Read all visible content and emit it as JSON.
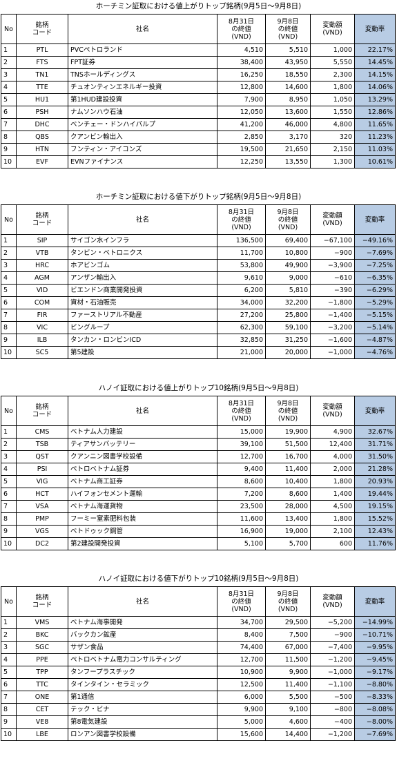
{
  "headers": {
    "no": "No",
    "code_l1": "銘柄",
    "code_l2": "コード",
    "name": "社名",
    "prev_l1": "8月31日",
    "prev_l2": "の終値",
    "prev_l3": "(VND)",
    "close_l1": "9月8日",
    "close_l2": "の終値",
    "close_l3": "(VND)",
    "diff_l1": "変動額",
    "diff_l2": "(VND)",
    "chg": "変動率"
  },
  "sections": [
    {
      "title": "ホーチミン証取における値上がりトップ銘柄(9月5日～9月8日)",
      "rows": [
        {
          "no": "1",
          "code": "PTL",
          "name": "PVCペトロランド",
          "prev": "4,510",
          "close": "5,510",
          "diff": "1,000",
          "chg": "22.17%"
        },
        {
          "no": "2",
          "code": "FTS",
          "name": "FPT証券",
          "prev": "38,400",
          "close": "43,950",
          "diff": "5,550",
          "chg": "14.45%"
        },
        {
          "no": "3",
          "code": "TN1",
          "name": "TNSホールディングス",
          "prev": "16,250",
          "close": "18,550",
          "diff": "2,300",
          "chg": "14.15%"
        },
        {
          "no": "4",
          "code": "TTE",
          "name": "チュオンティンエネルギー投資",
          "prev": "12,800",
          "close": "14,600",
          "diff": "1,800",
          "chg": "14.06%"
        },
        {
          "no": "5",
          "code": "HU1",
          "name": "第1HUD建設投資",
          "prev": "7,900",
          "close": "8,950",
          "diff": "1,050",
          "chg": "13.29%"
        },
        {
          "no": "6",
          "code": "PSH",
          "name": "ナムソンハウ石油",
          "prev": "12,050",
          "close": "13,600",
          "diff": "1,550",
          "chg": "12.86%"
        },
        {
          "no": "7",
          "code": "DHC",
          "name": "ベンチェー・ドンハイパルプ",
          "prev": "41,200",
          "close": "46,000",
          "diff": "4,800",
          "chg": "11.65%"
        },
        {
          "no": "8",
          "code": "QBS",
          "name": "クアンビン輸出入",
          "prev": "2,850",
          "close": "3,170",
          "diff": "320",
          "chg": "11.23%"
        },
        {
          "no": "9",
          "code": "HTN",
          "name": "フンティン・アイコンズ",
          "prev": "19,500",
          "close": "21,650",
          "diff": "2,150",
          "chg": "11.03%"
        },
        {
          "no": "10",
          "code": "EVF",
          "name": "EVNファイナンス",
          "prev": "12,250",
          "close": "13,550",
          "diff": "1,300",
          "chg": "10.61%"
        }
      ]
    },
    {
      "title": "ホーチミン証取における値下がりトップ銘柄(9月5日～9月8日)",
      "rows": [
        {
          "no": "1",
          "code": "SIP",
          "name": "サイゴン水インフラ",
          "prev": "136,500",
          "close": "69,400",
          "diff": "−67,100",
          "chg": "−49.16%"
        },
        {
          "no": "2",
          "code": "VTB",
          "name": "タンビン・ベトロニクス",
          "prev": "11,700",
          "close": "10,800",
          "diff": "−900",
          "chg": "−7.69%"
        },
        {
          "no": "3",
          "code": "HRC",
          "name": "ホアビンゴム",
          "prev": "53,800",
          "close": "49,900",
          "diff": "−3,900",
          "chg": "−7.25%"
        },
        {
          "no": "4",
          "code": "AGM",
          "name": "アンザン輸出入",
          "prev": "9,610",
          "close": "9,000",
          "diff": "−610",
          "chg": "−6.35%"
        },
        {
          "no": "5",
          "code": "VID",
          "name": "ビエンドン商業開発投資",
          "prev": "6,200",
          "close": "5,810",
          "diff": "−390",
          "chg": "−6.29%"
        },
        {
          "no": "6",
          "code": "COM",
          "name": "資材・石油販売",
          "prev": "34,000",
          "close": "32,200",
          "diff": "−1,800",
          "chg": "−5.29%"
        },
        {
          "no": "7",
          "code": "FIR",
          "name": "ファーストリアル不動産",
          "prev": "27,200",
          "close": "25,800",
          "diff": "−1,400",
          "chg": "−5.15%"
        },
        {
          "no": "8",
          "code": "VIC",
          "name": "ビングループ",
          "prev": "62,300",
          "close": "59,100",
          "diff": "−3,200",
          "chg": "−5.14%"
        },
        {
          "no": "9",
          "code": "ILB",
          "name": "タンカン・ロンビンICD",
          "prev": "32,850",
          "close": "31,250",
          "diff": "−1,600",
          "chg": "−4.87%"
        },
        {
          "no": "10",
          "code": "SC5",
          "name": "第5建設",
          "prev": "21,000",
          "close": "20,000",
          "diff": "−1,000",
          "chg": "−4.76%"
        }
      ]
    },
    {
      "title": "ハノイ証取における値上がりトップ10銘柄(9月5日～9月8日)",
      "rows": [
        {
          "no": "1",
          "code": "CMS",
          "name": "ベトナム人力建設",
          "prev": "15,000",
          "close": "19,900",
          "diff": "4,900",
          "chg": "32.67%"
        },
        {
          "no": "2",
          "code": "TSB",
          "name": "ティアサンバッテリー",
          "prev": "39,100",
          "close": "51,500",
          "diff": "12,400",
          "chg": "31.71%"
        },
        {
          "no": "3",
          "code": "QST",
          "name": "クアンニン図書学校設備",
          "prev": "12,700",
          "close": "16,700",
          "diff": "4,000",
          "chg": "31.50%"
        },
        {
          "no": "4",
          "code": "PSI",
          "name": "ペトロベトナム証券",
          "prev": "9,400",
          "close": "11,400",
          "diff": "2,000",
          "chg": "21.28%"
        },
        {
          "no": "5",
          "code": "VIG",
          "name": "ベトナム商工証券",
          "prev": "8,600",
          "close": "10,400",
          "diff": "1,800",
          "chg": "20.93%"
        },
        {
          "no": "6",
          "code": "HCT",
          "name": "ハイフォンセメント運輸",
          "prev": "7,200",
          "close": "8,600",
          "diff": "1,400",
          "chg": "19.44%"
        },
        {
          "no": "7",
          "code": "VSA",
          "name": "ベトナム海運貨物",
          "prev": "23,500",
          "close": "28,000",
          "diff": "4,500",
          "chg": "19.15%"
        },
        {
          "no": "8",
          "code": "PMP",
          "name": "フーミー窒素肥料包装",
          "prev": "11,600",
          "close": "13,400",
          "diff": "1,800",
          "chg": "15.52%"
        },
        {
          "no": "9",
          "code": "VGS",
          "name": "ベトドゥック鋼管",
          "prev": "16,900",
          "close": "19,000",
          "diff": "2,100",
          "chg": "12.43%"
        },
        {
          "no": "10",
          "code": "DC2",
          "name": "第2建設開発投資",
          "prev": "5,100",
          "close": "5,700",
          "diff": "600",
          "chg": "11.76%"
        }
      ]
    },
    {
      "title": "ハノイ証取における値下がりトップ10銘柄(9月5日～9月8日)",
      "rows": [
        {
          "no": "1",
          "code": "VMS",
          "name": "ベトナム海事開発",
          "prev": "34,700",
          "close": "29,500",
          "diff": "−5,200",
          "chg": "−14.99%"
        },
        {
          "no": "2",
          "code": "BKC",
          "name": "バックカン鉱産",
          "prev": "8,400",
          "close": "7,500",
          "diff": "−900",
          "chg": "−10.71%"
        },
        {
          "no": "3",
          "code": "SGC",
          "name": "サザン食品",
          "prev": "74,400",
          "close": "67,000",
          "diff": "−7,400",
          "chg": "−9.95%"
        },
        {
          "no": "4",
          "code": "PPE",
          "name": "ペトロベトナム電力コンサルティング",
          "prev": "12,700",
          "close": "11,500",
          "diff": "−1,200",
          "chg": "−9.45%"
        },
        {
          "no": "5",
          "code": "TPP",
          "name": "タンフープラスチック",
          "prev": "10,900",
          "close": "9,900",
          "diff": "−1,000",
          "chg": "−9.17%"
        },
        {
          "no": "6",
          "code": "TTC",
          "name": "タインタイン・セラミック",
          "prev": "12,500",
          "close": "11,400",
          "diff": "−1,100",
          "chg": "−8.80%"
        },
        {
          "no": "7",
          "code": "ONE",
          "name": "第1通信",
          "prev": "6,000",
          "close": "5,500",
          "diff": "−500",
          "chg": "−8.33%"
        },
        {
          "no": "8",
          "code": "CET",
          "name": "テック・ビナ",
          "prev": "9,900",
          "close": "9,100",
          "diff": "−800",
          "chg": "−8.08%"
        },
        {
          "no": "9",
          "code": "VE8",
          "name": "第8電気建設",
          "prev": "5,000",
          "close": "4,600",
          "diff": "−400",
          "chg": "−8.00%"
        },
        {
          "no": "10",
          "code": "LBE",
          "name": "ロンアン図書学校設備",
          "prev": "15,600",
          "close": "14,400",
          "diff": "−1,200",
          "chg": "−7.69%"
        }
      ]
    }
  ]
}
